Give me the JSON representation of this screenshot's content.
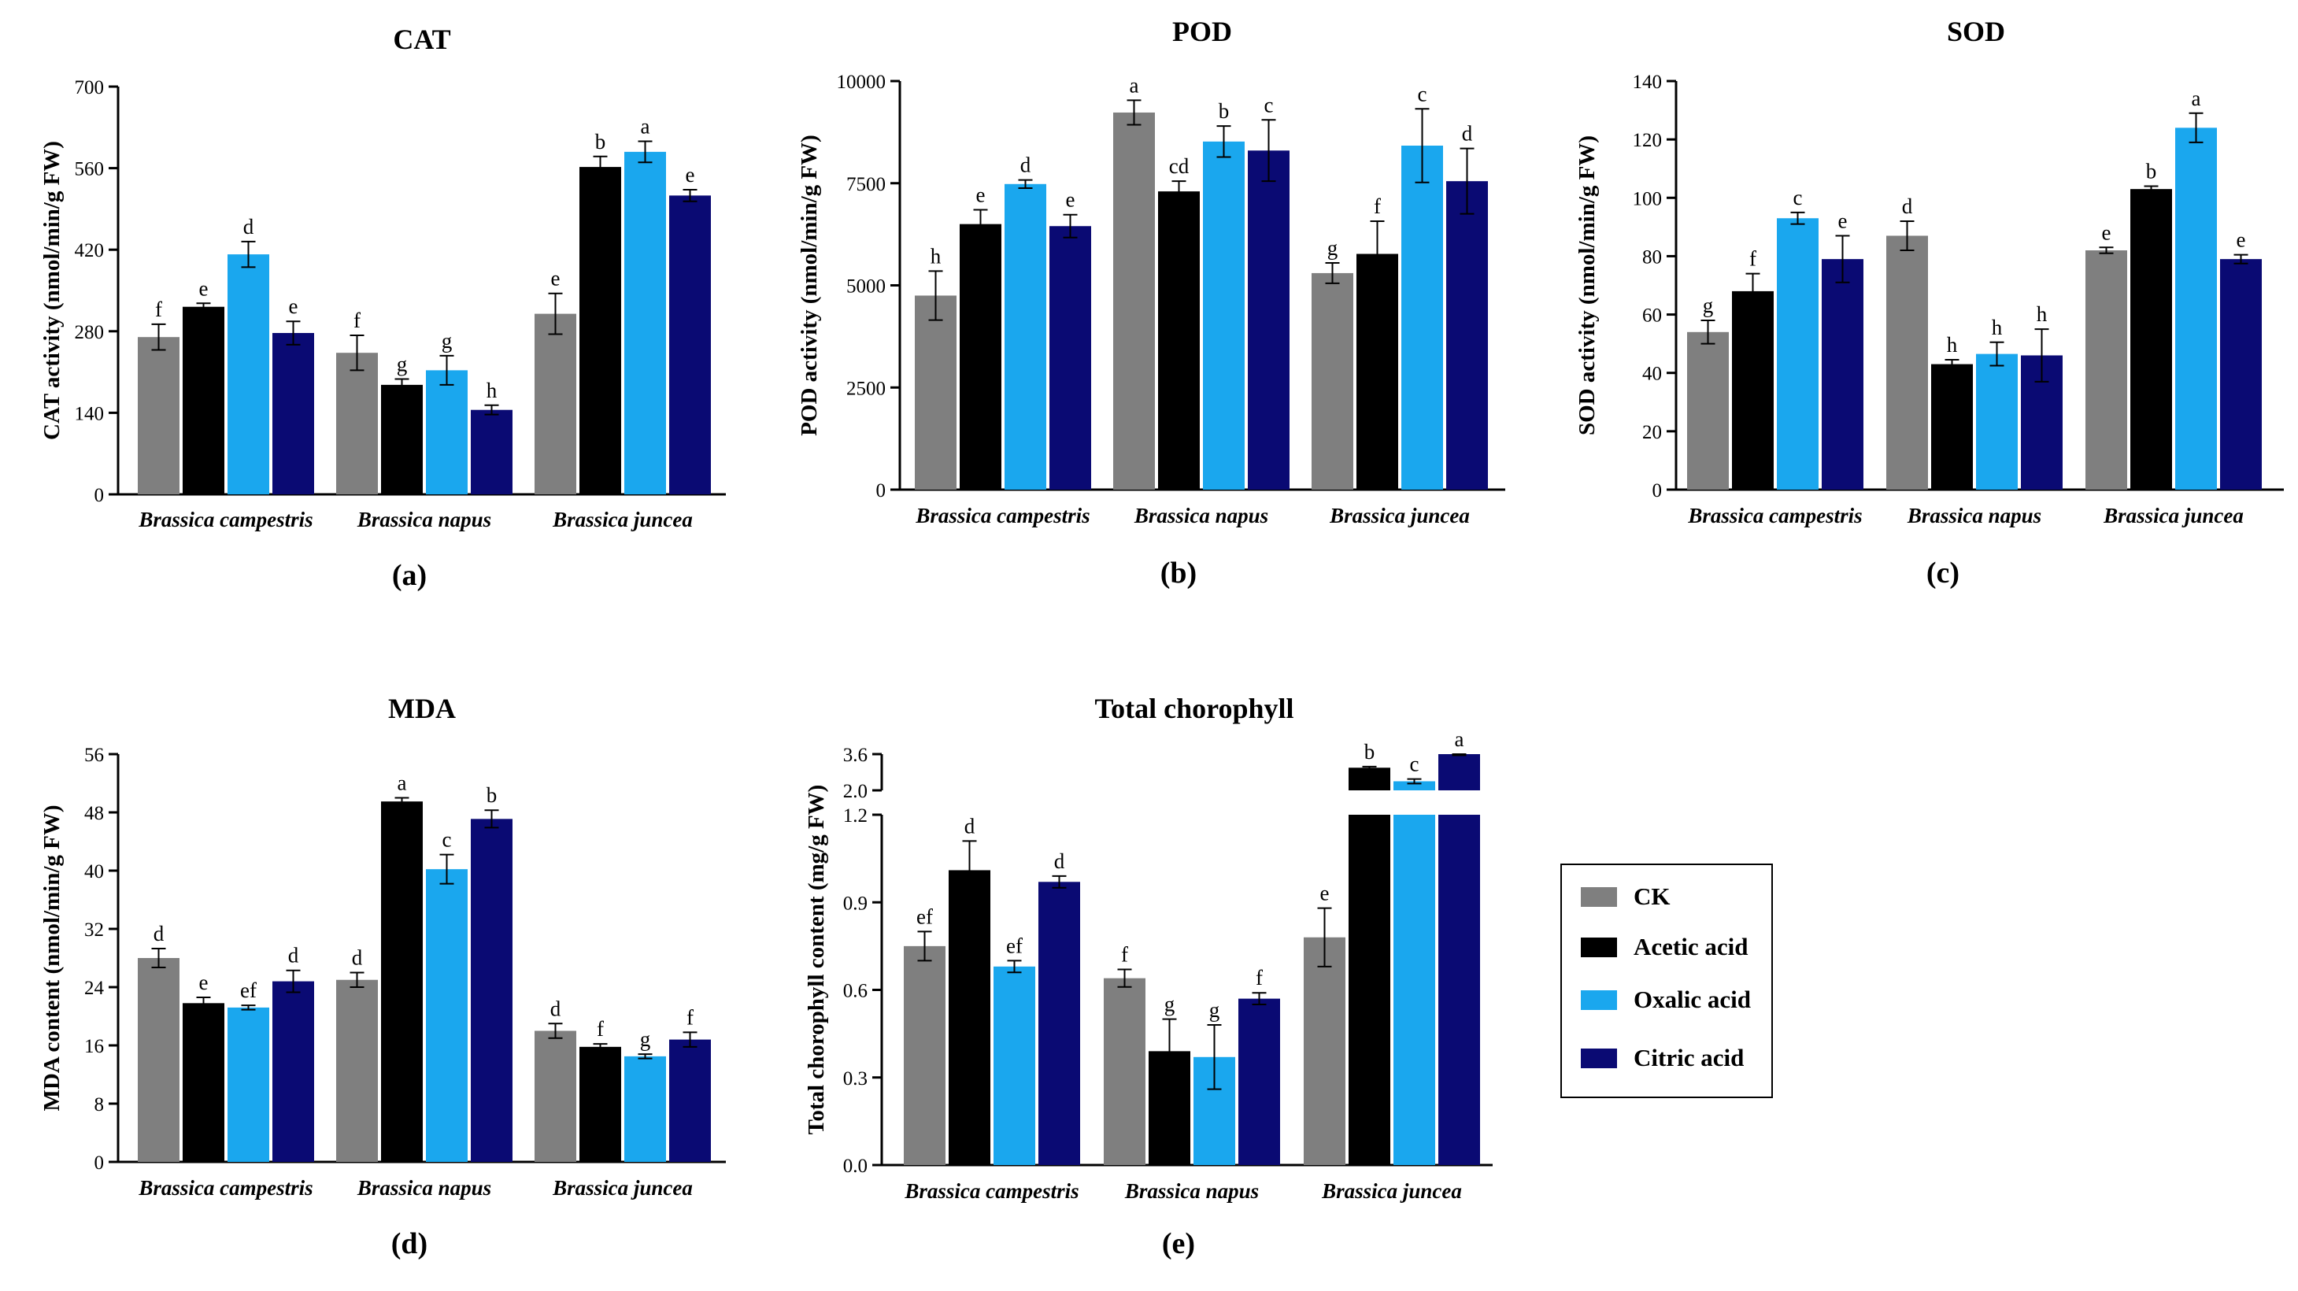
{
  "colors": {
    "CK": "#7f7f7f",
    "Acetic acid": "#000000",
    "Oxalic acid": "#1aa7ee",
    "Citric acid": "#0a0a73"
  },
  "legend": {
    "items": [
      "CK",
      "Acetic acid",
      "Oxalic acid",
      "Citric acid"
    ]
  },
  "chart_data": [
    {
      "type": "bar",
      "title": "CAT",
      "panel_label": "(a)",
      "xlabel": "",
      "ylabel": "CAT activity (nmol/min/g FW)",
      "categories": [
        "Brassica campestris",
        "Brassica napus",
        "Brassica juncea"
      ],
      "ylim": [
        0,
        700
      ],
      "yticks": [
        0,
        140,
        280,
        420,
        560,
        700
      ],
      "series": [
        {
          "name": "CK",
          "values": [
            270,
            243,
            310
          ],
          "errors": [
            22,
            30,
            35
          ],
          "letters": [
            "f",
            "f",
            "e"
          ]
        },
        {
          "name": "Acetic acid",
          "values": [
            322,
            188,
            562
          ],
          "errors": [
            6,
            10,
            18
          ],
          "letters": [
            "e",
            "g",
            "b"
          ]
        },
        {
          "name": "Oxalic acid",
          "values": [
            412,
            213,
            588
          ],
          "errors": [
            22,
            25,
            18
          ],
          "letters": [
            "d",
            "g",
            "a"
          ]
        },
        {
          "name": "Citric acid",
          "values": [
            277,
            145,
            513
          ],
          "errors": [
            20,
            8,
            10
          ],
          "letters": [
            "e",
            "h",
            "e"
          ]
        }
      ]
    },
    {
      "type": "bar",
      "title": "POD",
      "panel_label": "(b)",
      "xlabel": "",
      "ylabel": "POD activity (nmol/min/g FW)",
      "categories": [
        "Brassica campestris",
        "Brassica napus",
        "Brassica juncea"
      ],
      "ylim": [
        0,
        10000
      ],
      "yticks": [
        0,
        2500,
        5000,
        7500,
        10000
      ],
      "series": [
        {
          "name": "CK",
          "values": [
            4750,
            9230,
            5300
          ],
          "errors": [
            600,
            300,
            250
          ],
          "letters": [
            "h",
            "a",
            "g"
          ]
        },
        {
          "name": "Acetic acid",
          "values": [
            6500,
            7300,
            5770
          ],
          "errors": [
            350,
            250,
            800
          ],
          "letters": [
            "e",
            "cd",
            "f"
          ]
        },
        {
          "name": "Oxalic acid",
          "values": [
            7480,
            8520,
            8420
          ],
          "errors": [
            100,
            380,
            900
          ],
          "letters": [
            "d",
            "b",
            "c"
          ]
        },
        {
          "name": "Citric acid",
          "values": [
            6450,
            8300,
            7550
          ],
          "errors": [
            280,
            750,
            800
          ],
          "letters": [
            "e",
            "c",
            "d"
          ]
        }
      ]
    },
    {
      "type": "bar",
      "title": "SOD",
      "panel_label": "(c)",
      "xlabel": "",
      "ylabel": "SOD activity (nmol/min/g FW)",
      "categories": [
        "Brassica campestris",
        "Brassica napus",
        "Brassica juncea"
      ],
      "ylim": [
        0,
        140
      ],
      "yticks": [
        0,
        20,
        40,
        60,
        80,
        100,
        120,
        140
      ],
      "series": [
        {
          "name": "CK",
          "values": [
            54,
            87,
            82
          ],
          "errors": [
            4,
            5,
            1
          ],
          "letters": [
            "g",
            "d",
            "e"
          ]
        },
        {
          "name": "Acetic acid",
          "values": [
            68,
            43,
            103
          ],
          "errors": [
            6,
            1.5,
            1
          ],
          "letters": [
            "f",
            "h",
            "b"
          ]
        },
        {
          "name": "Oxalic acid",
          "values": [
            93,
            46.5,
            124
          ],
          "errors": [
            2,
            4,
            5
          ],
          "letters": [
            "c",
            "h",
            "a"
          ]
        },
        {
          "name": "Citric acid",
          "values": [
            79,
            46,
            79
          ],
          "errors": [
            8,
            9,
            1.5
          ],
          "letters": [
            "e",
            "h",
            "e"
          ]
        }
      ]
    },
    {
      "type": "bar",
      "title": "MDA",
      "panel_label": "(d)",
      "xlabel": "",
      "ylabel": "MDA content (nmol/min/g FW)",
      "categories": [
        "Brassica campestris",
        "Brassica napus",
        "Brassica juncea"
      ],
      "ylim": [
        0,
        56
      ],
      "yticks": [
        0,
        8,
        16,
        24,
        32,
        40,
        48,
        56
      ],
      "series": [
        {
          "name": "CK",
          "values": [
            28,
            25,
            18
          ],
          "errors": [
            1.3,
            1,
            1
          ],
          "letters": [
            "d",
            "d",
            "d"
          ]
        },
        {
          "name": "Acetic acid",
          "values": [
            21.8,
            49.5,
            15.8
          ],
          "errors": [
            0.8,
            0.5,
            0.4
          ],
          "letters": [
            "e",
            "a",
            "f"
          ]
        },
        {
          "name": "Oxalic acid",
          "values": [
            21.2,
            40.2,
            14.5
          ],
          "errors": [
            0.3,
            2,
            0.3
          ],
          "letters": [
            "ef",
            "c",
            "g"
          ]
        },
        {
          "name": "Citric acid",
          "values": [
            24.8,
            47.1,
            16.8
          ],
          "errors": [
            1.5,
            1.2,
            1
          ],
          "letters": [
            "d",
            "b",
            "f"
          ]
        }
      ]
    },
    {
      "type": "bar",
      "title": "Total chorophyll",
      "panel_label": "(e)",
      "xlabel": "",
      "ylabel": "Total chorophyll content (mg/g FW)",
      "categories": [
        "Brassica campestris",
        "Brassica napus",
        "Brassica juncea"
      ],
      "ylim": [
        0,
        3.6
      ],
      "axis_break": [
        1.2,
        2.0
      ],
      "yticks_lower": [
        0.0,
        0.3,
        0.6,
        0.9,
        1.2
      ],
      "yticks_upper": [
        2.0,
        3.6
      ],
      "series": [
        {
          "name": "CK",
          "values": [
            0.75,
            0.64,
            0.78
          ],
          "errors": [
            0.05,
            0.03,
            0.1
          ],
          "letters": [
            "ef",
            "f",
            "e"
          ]
        },
        {
          "name": "Acetic acid",
          "values": [
            1.01,
            0.39,
            3.0
          ],
          "errors": [
            0.1,
            0.11,
            0.05
          ],
          "letters": [
            "d",
            "g",
            "b"
          ]
        },
        {
          "name": "Oxalic acid",
          "values": [
            0.68,
            0.37,
            2.4
          ],
          "errors": [
            0.02,
            0.11,
            0.1
          ],
          "letters": [
            "ef",
            "g",
            "c"
          ]
        },
        {
          "name": "Citric acid",
          "values": [
            0.97,
            0.57,
            3.6
          ],
          "errors": [
            0.02,
            0.02,
            0.05
          ],
          "letters": [
            "d",
            "f",
            "a"
          ]
        }
      ]
    }
  ]
}
